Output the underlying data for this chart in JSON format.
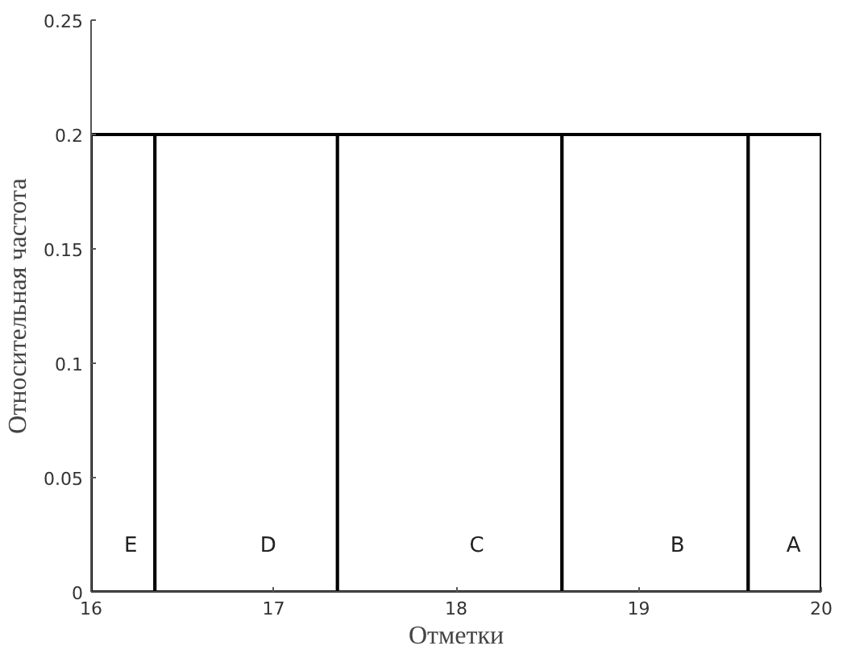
{
  "chart_data": {
    "type": "histogram",
    "xlabel": "Отметки",
    "ylabel": "Относительная частота",
    "bins": [
      16,
      16.35,
      17.35,
      18.58,
      19.6,
      20
    ],
    "values": [
      0.2,
      0.2,
      0.2,
      0.2,
      0.2
    ],
    "color": "#000000",
    "xlim": [
      16,
      20
    ],
    "xticks": [
      16,
      17,
      18,
      19,
      20
    ],
    "ylim": [
      0,
      0.25
    ],
    "yticks": [
      0,
      0.05,
      0.1,
      0.15,
      0.2,
      0.25
    ],
    "grid": false,
    "annotations": [
      "E",
      "D",
      "C",
      "B",
      "A"
    ]
  }
}
